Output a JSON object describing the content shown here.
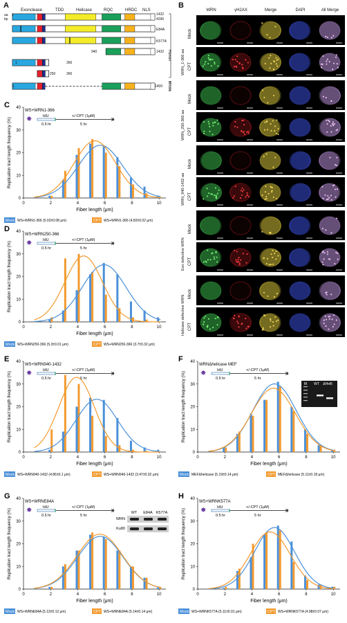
{
  "colors": {
    "exo": "#29a8e0",
    "tdd": "#e8212b",
    "hel": "#f4ec2a",
    "rqc": "#1aa05a",
    "hrdc": "#f8b21c",
    "nls": "#ffffff",
    "mock": "#4a90d9",
    "cpt": "#f39a2e"
  },
  "panelA": {
    "letter": "A",
    "aa_label": "aa",
    "bp_label": "bp",
    "domains": [
      "Exonclease",
      "TDD",
      "Helicase",
      "RQC",
      "HRDC",
      "NLS"
    ],
    "one": "1",
    "human": "Human",
    "mouse": "Mouse",
    "rows": [
      {
        "right": "1432",
        "right2": "4296"
      },
      {
        "right": "E84A"
      },
      {
        "right": "K577A"
      },
      {
        "left": "940",
        "right": "1432"
      },
      {
        "left": "1",
        "right": "366"
      },
      {
        "left": "250",
        "right": "366"
      },
      {
        "left": "1",
        "right": "1400"
      }
    ]
  },
  "panelB": {
    "letter": "B",
    "columns": [
      "WRN",
      "γH2AX",
      "Merge",
      "DAPI",
      "All Merge"
    ],
    "groups": [
      "WRN_1-366 aa",
      "WRN_250-366 aa",
      "WRN_940-1432 aa",
      "Exo defective WRN",
      "Helicase defective WRN"
    ],
    "conditions": [
      "Mock",
      "CPT"
    ]
  },
  "common": {
    "ylabel": "Replication tract length frequency (%)",
    "xlabel": "Fiber length (μm)",
    "idu": "IdU",
    "t1": "0.5 hr",
    "t2": "5 hr",
    "cpt_treat": "+/-CPT (1μM)",
    "mock": "Mock",
    "cpt": "CPT",
    "yticks": [
      "0",
      "10",
      "20",
      "30",
      "40"
    ],
    "xticks": [
      "0",
      "2",
      "4",
      "6",
      "8",
      "10"
    ]
  },
  "chart_data": [
    {
      "panel": "C",
      "type": "bar",
      "title": "WS+WRN1-366",
      "x": [
        2,
        3,
        4,
        5,
        6,
        7,
        8,
        9,
        10
      ],
      "series": [
        {
          "name": "WS+WRN1-366 (5.02±0.08 μm)",
          "values": [
            1,
            8,
            19,
            24,
            23,
            18,
            9,
            5,
            1
          ]
        },
        {
          "name": "WS+WRN1-366 (4.82±0.02 μm)",
          "values": [
            1,
            12,
            22,
            26,
            20,
            14,
            6,
            2,
            0.5
          ]
        }
      ],
      "ylim": [
        0,
        40
      ],
      "xlim": [
        0,
        10.5
      ]
    },
    {
      "panel": "D",
      "type": "bar",
      "title": "WS+WRN250-366",
      "x": [
        2,
        3,
        4,
        5,
        6,
        7,
        8,
        9,
        10
      ],
      "series": [
        {
          "name": "WS+WRN250-366 (5.3±0.01 μm)",
          "values": [
            1,
            5,
            14,
            21,
            26,
            21,
            9,
            5,
            2
          ]
        },
        {
          "name": "WS+WRN250-366 (3.7±0.32 μm)",
          "values": [
            2,
            28,
            30,
            22,
            12,
            6,
            2,
            1,
            0
          ]
        }
      ],
      "ylim": [
        0,
        40
      ],
      "xlim": [
        0,
        10.5
      ]
    },
    {
      "panel": "E",
      "type": "bar",
      "title": "WS+WRN940-1432",
      "x": [
        2,
        3,
        4,
        5,
        6,
        7,
        8,
        9,
        10
      ],
      "series": [
        {
          "name": "WS+WRN940-1432 (4.86±0.1 μm)",
          "values": [
            1,
            9,
            20,
            24,
            23,
            15,
            5,
            2,
            1
          ]
        },
        {
          "name": "WS+WRN940-1432 (3.47±0.32 μm)",
          "values": [
            10,
            34,
            30,
            16,
            7,
            3,
            1,
            0.5,
            0
          ]
        }
      ],
      "ylim": [
        0,
        40
      ],
      "xlim": [
        0,
        10.5
      ]
    },
    {
      "panel": "F",
      "type": "bar",
      "title": "WRNΔhelicase MEF",
      "x": [
        1,
        2,
        3,
        4,
        5,
        6,
        7,
        8,
        9,
        10
      ],
      "series": [
        {
          "name": "MEFΔhelicase (5.19±0.14 μm)",
          "values": [
            0.5,
            2,
            8,
            17,
            23,
            31,
            20,
            10,
            3,
            1
          ]
        },
        {
          "name": "MEFΔhelicase (5.11±0.18 μm)",
          "values": [
            0.5,
            2,
            9,
            16,
            23,
            29,
            18,
            8,
            3,
            1
          ]
        }
      ],
      "ylim": [
        0,
        40
      ],
      "xlim": [
        0,
        10.5
      ],
      "gel": {
        "lanes": [
          "M",
          "WT",
          "ΔHel6"
        ]
      }
    },
    {
      "panel": "G",
      "type": "bar",
      "title": "WS+WRNE84A",
      "x": [
        2,
        3,
        4,
        5,
        6,
        7,
        8,
        9,
        10
      ],
      "series": [
        {
          "name": "WS+WRNE84A (5.12±0.12 μm)",
          "values": [
            1,
            10,
            17,
            24,
            23,
            17,
            10,
            5,
            1
          ]
        },
        {
          "name": "WS+WRNE84A (5.14±0.14 μm)",
          "values": [
            1,
            11,
            17,
            25,
            22,
            17,
            10,
            5,
            1
          ]
        }
      ],
      "ylim": [
        0,
        40
      ],
      "xlim": [
        0,
        10.5
      ],
      "blot": {
        "lanes": [
          "WT",
          "E84A",
          "K577A"
        ],
        "rows": [
          "WRN",
          "Ku80"
        ]
      }
    },
    {
      "panel": "H",
      "type": "bar",
      "title": "WS+WRNK577A",
      "x": [
        2,
        3,
        4,
        5,
        6,
        7,
        8,
        9,
        10
      ],
      "series": [
        {
          "name": "WS+WRNK577A (5.11±0.01 μm)",
          "values": [
            0.5,
            8,
            14,
            24,
            28,
            21,
            6,
            2,
            1
          ]
        },
        {
          "name": "WS+WRNK577A (4.98±0.07 μm)",
          "values": [
            1,
            9,
            20,
            25,
            26,
            12,
            4,
            2,
            1
          ]
        }
      ],
      "ylim": [
        0,
        40
      ],
      "xlim": [
        0,
        10.5
      ]
    }
  ]
}
